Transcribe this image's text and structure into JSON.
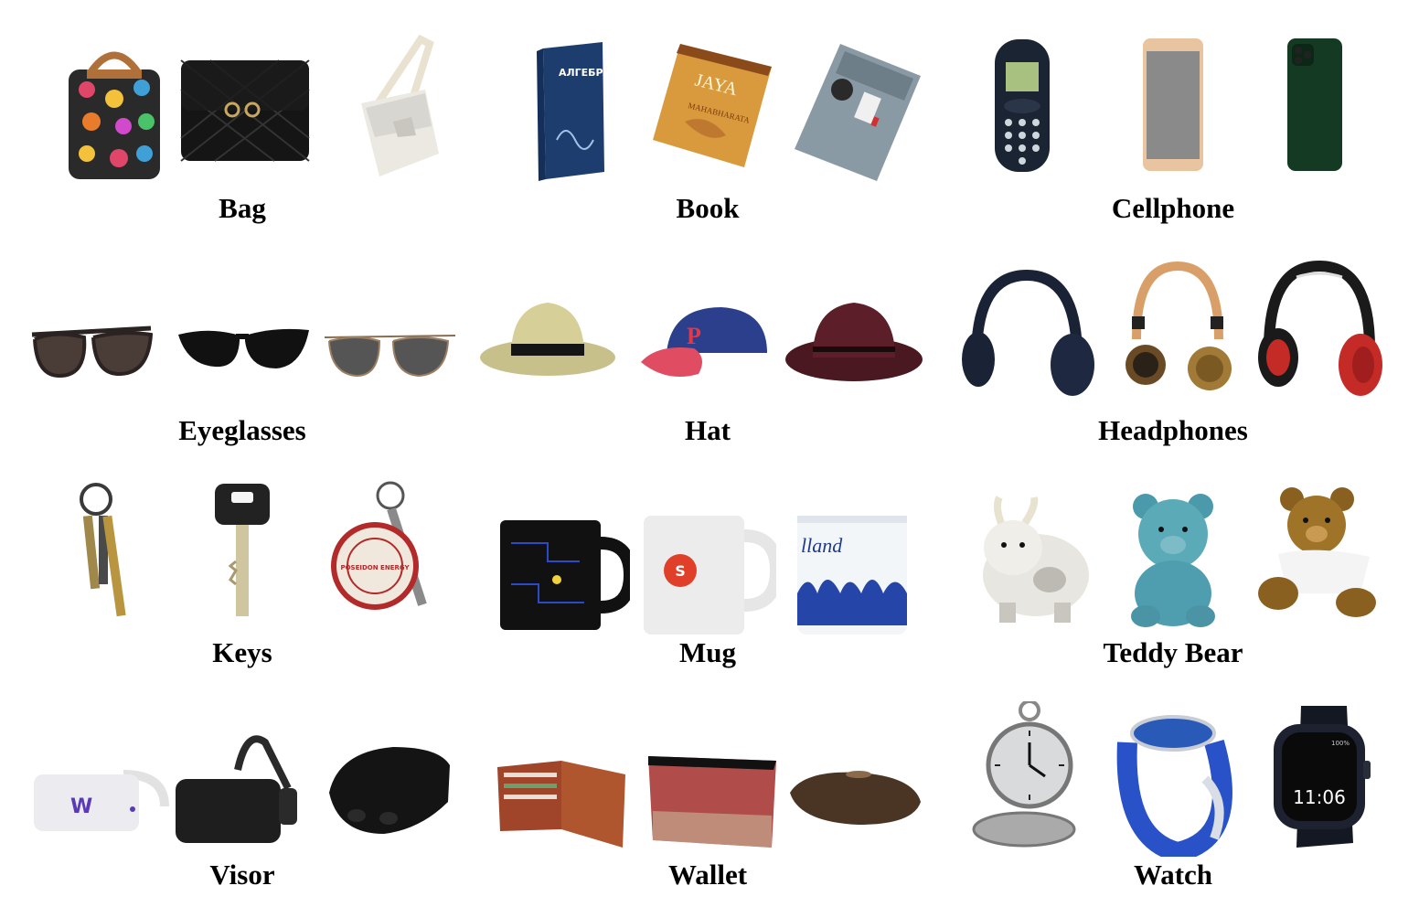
{
  "categories": [
    {
      "label": "Bag",
      "items": [
        "tote-bag",
        "quilted-handbag",
        "messenger-bag"
      ]
    },
    {
      "label": "Book",
      "items": [
        "book-algebra",
        "book-jaya",
        "book-manual"
      ]
    },
    {
      "label": "Cellphone",
      "items": [
        "feature-phone",
        "smartphone-gold",
        "smartphone-green"
      ]
    },
    {
      "label": "Eyeglasses",
      "items": [
        "cat-eye-sunglasses",
        "wayfarer-sunglasses",
        "aviator-sunglasses"
      ]
    },
    {
      "label": "Hat",
      "items": [
        "straw-fedora",
        "baseball-cap",
        "wide-brim-hat"
      ]
    },
    {
      "label": "Headphones",
      "items": [
        "headphones-navy",
        "headphones-wood",
        "headphones-red"
      ]
    },
    {
      "label": "Keys",
      "items": [
        "keyring-brass",
        "car-key",
        "keychain-tag"
      ]
    },
    {
      "label": "Mug",
      "items": [
        "mug-pacman",
        "mug-white",
        "mug-delft"
      ]
    },
    {
      "label": "Teddy Bear",
      "items": [
        "plush-goat",
        "teddy-blue",
        "teddy-brown"
      ]
    },
    {
      "label": "Visor",
      "items": [
        "vr-headset-white",
        "vr-headset-black",
        "vr-headset-visor"
      ]
    },
    {
      "label": "Wallet",
      "items": [
        "bifold-wallet",
        "zip-wallet",
        "leather-pouch"
      ]
    },
    {
      "label": "Watch",
      "items": [
        "pocket-watch",
        "dive-watch-blue",
        "smartwatch"
      ]
    }
  ],
  "printed_text": {
    "book_algebra": "АЛГЕБРА",
    "book_jaya": "JAYA",
    "book_jaya_sub": "MAHABHARATA",
    "keychain_tag": "POSEIDON ENERGY",
    "mug_delft": "lland",
    "visor_logo": "W",
    "smartwatch_time": "11:06",
    "smartwatch_batt": "100%"
  }
}
